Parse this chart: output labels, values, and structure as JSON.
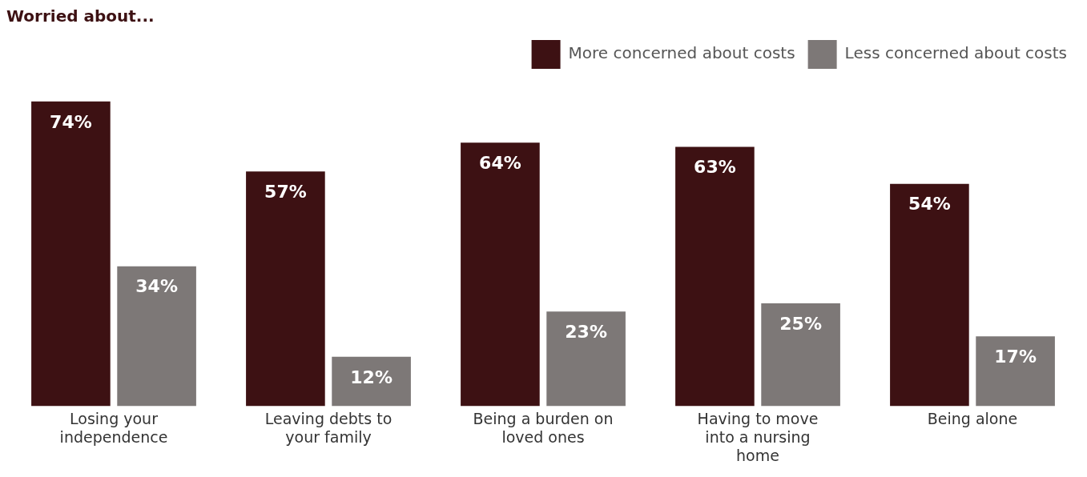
{
  "chart_data": {
    "type": "bar",
    "title": "Worried about...",
    "categories": [
      "Losing your independence",
      "Leaving debts to your family",
      "Being a burden on loved ones",
      "Having to move into a nursing home",
      "Being alone"
    ],
    "series": [
      {
        "name": "More concerned about costs",
        "color": "#3d1113",
        "values": [
          74,
          57,
          64,
          63,
          54
        ],
        "value_labels": [
          "74%",
          "57%",
          "64%",
          "63%",
          "54%"
        ]
      },
      {
        "name": "Less concerned about costs",
        "color": "#7d7877",
        "values": [
          34,
          12,
          23,
          25,
          17
        ],
        "value_labels": [
          "34%",
          "12%",
          "23%",
          "25%",
          "17%"
        ]
      }
    ],
    "grid": false,
    "legend": "top right"
  }
}
